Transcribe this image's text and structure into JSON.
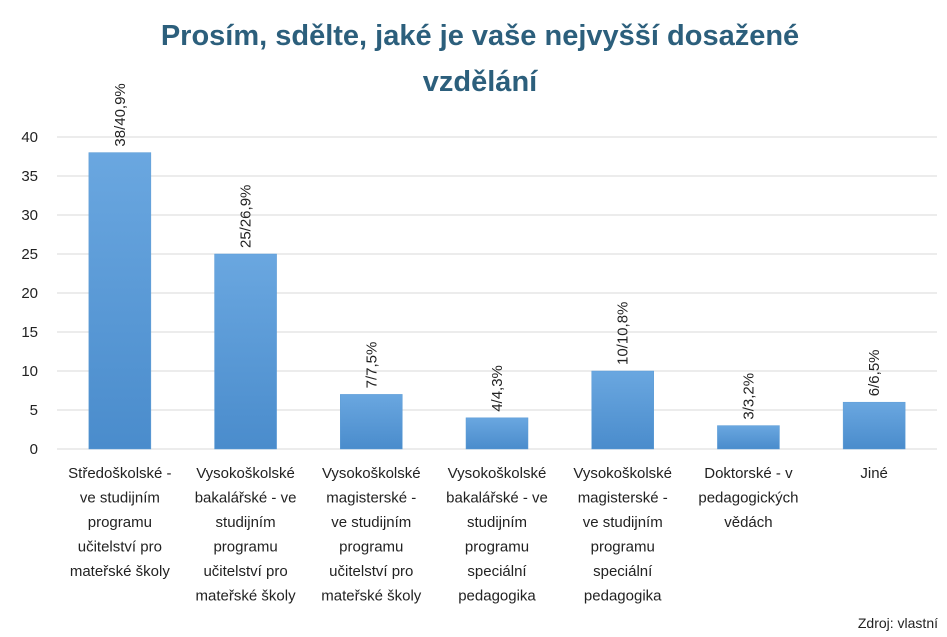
{
  "chart_data": {
    "type": "bar",
    "title": "Prosím, sdělte, jaké je vaše nejvyšší dosažené\nvzdělání",
    "categories": [
      "Středoškolské -\nve studijním\nprogramu\nučitelství pro\nmateřské školy",
      "Vysokoškolské\nbakalářské - ve\nstudijním\nprogramu\nučitelství pro\nmateřské školy",
      "Vysokoškolské\nmagisterské -\nve studijním\nprogramu\nučitelství pro\nmateřské školy",
      "Vysokoškolské\nbakalářské - ve\nstudijním\nprogramu\nspeciální\npedagogika",
      "Vysokoškolské\nmagisterské -\nve studijním\nprogramu\nspeciální\npedagogika",
      "Doktorské - v\npedagogických\nvědách",
      "Jiné"
    ],
    "values": [
      38,
      25,
      7,
      4,
      10,
      3,
      6
    ],
    "value_labels": [
      "38/40,9%",
      "25/26,9%",
      "7/7,5%",
      "4/4,3%",
      "10/10,8%",
      "3/3,2%",
      "6/6,5%"
    ],
    "color": "#5b9bd5",
    "ylim": [
      0,
      40
    ],
    "yticks": [
      0,
      5,
      10,
      15,
      20,
      25,
      30,
      35,
      40
    ],
    "grid": true,
    "note": "Zdroj: vlastní"
  }
}
